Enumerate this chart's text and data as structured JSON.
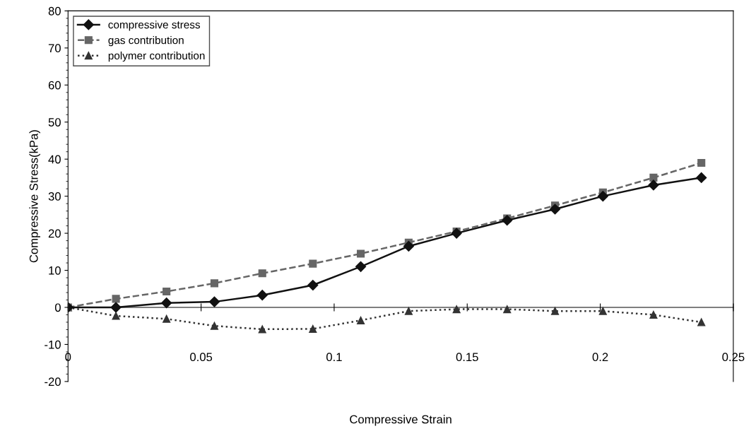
{
  "chart_data": {
    "type": "line",
    "xlabel": "Compressive Strain",
    "ylabel": "Compressive Stress(kPa)",
    "x": [
      0,
      0.018,
      0.037,
      0.055,
      0.073,
      0.092,
      0.11,
      0.128,
      0.146,
      0.165,
      0.183,
      0.201,
      0.22,
      0.238
    ],
    "series": [
      {
        "name": "compressive stress",
        "color": "#111111",
        "marker": "diamond",
        "line_style": "solid",
        "values": [
          0,
          0,
          1.2,
          1.5,
          3.3,
          6,
          11,
          16.5,
          20,
          23.5,
          26.5,
          30,
          33,
          35
        ]
      },
      {
        "name": "gas contribution",
        "color": "#666666",
        "marker": "square",
        "line_style": "dashed",
        "values": [
          0,
          2.3,
          4.3,
          6.5,
          9.2,
          11.8,
          14.5,
          17.5,
          20.5,
          24,
          27.5,
          31,
          35,
          39
        ]
      },
      {
        "name": "polymer contribution",
        "color": "#333333",
        "marker": "triangle",
        "line_style": "dotted",
        "values": [
          0,
          -2.3,
          -3.1,
          -5,
          -5.9,
          -5.8,
          -3.5,
          -1,
          -0.5,
          -0.5,
          -1,
          -1,
          -2,
          -4
        ]
      }
    ],
    "xlim": [
      0,
      0.25
    ],
    "ylim": [
      -20,
      80
    ],
    "xticks": [
      0,
      0.05,
      0.1,
      0.15,
      0.2,
      0.25
    ],
    "yticks": [
      -20,
      -10,
      0,
      10,
      20,
      30,
      40,
      50,
      60,
      70,
      80
    ],
    "legend": "top left"
  }
}
